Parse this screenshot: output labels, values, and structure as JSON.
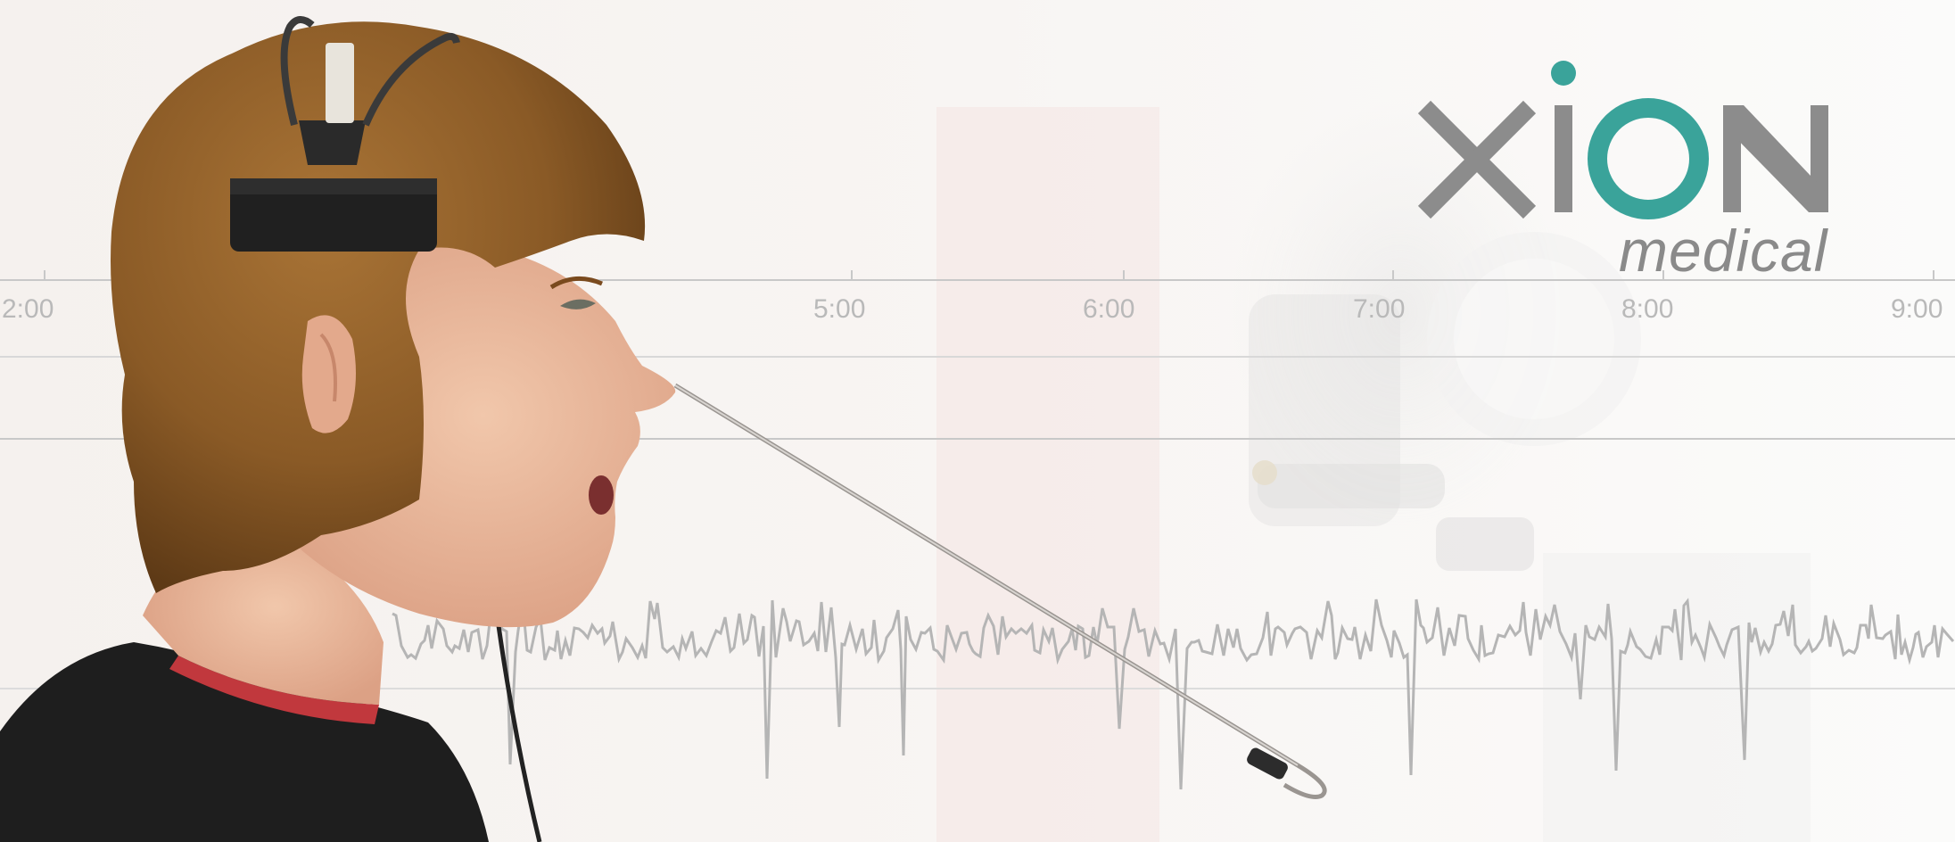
{
  "logo": {
    "brand": "xion",
    "subtitle": "medical",
    "colors": {
      "gray": "#8c8c8c",
      "teal": "#3aa39a"
    }
  },
  "axis": {
    "ticks": [
      "2:00",
      "5:00",
      "6:00",
      "7:00",
      "8:00",
      "9:00"
    ]
  },
  "colors": {
    "background": "#f7f5f2",
    "gridline": "#c8c8c8",
    "signal": "#b5b5b5",
    "hair": "#8a5a26",
    "shirt": "#1e1e1e",
    "skin": "#e8b69a"
  }
}
